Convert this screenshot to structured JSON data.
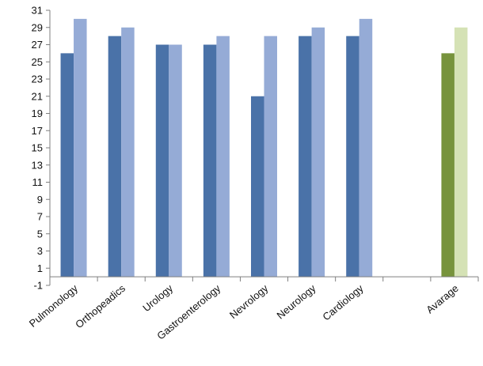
{
  "chart_data": {
    "type": "bar",
    "title": "",
    "xlabel": "",
    "ylabel": "",
    "categories": [
      "Pulmonology",
      "Orthopeadics",
      "Urology",
      "Gastroenterology",
      "Nevrology",
      "Neurology",
      "Cardiology",
      "",
      "Avarage"
    ],
    "series": [
      {
        "values": [
          26,
          28,
          27,
          27,
          21,
          28,
          28,
          null,
          26
        ],
        "color": "#4a72a8",
        "color_last": "#77933c"
      },
      {
        "values": [
          30,
          29,
          27,
          28,
          28,
          29,
          30,
          null,
          29
        ],
        "color": "#95abd6",
        "color_last": "#d5e2b5"
      }
    ],
    "ylim": [
      -1,
      31
    ],
    "yticks": [
      -1,
      1,
      3,
      5,
      7,
      9,
      11,
      13,
      15,
      17,
      19,
      21,
      23,
      25,
      27,
      29,
      31
    ],
    "grid": false,
    "legend": "none"
  }
}
